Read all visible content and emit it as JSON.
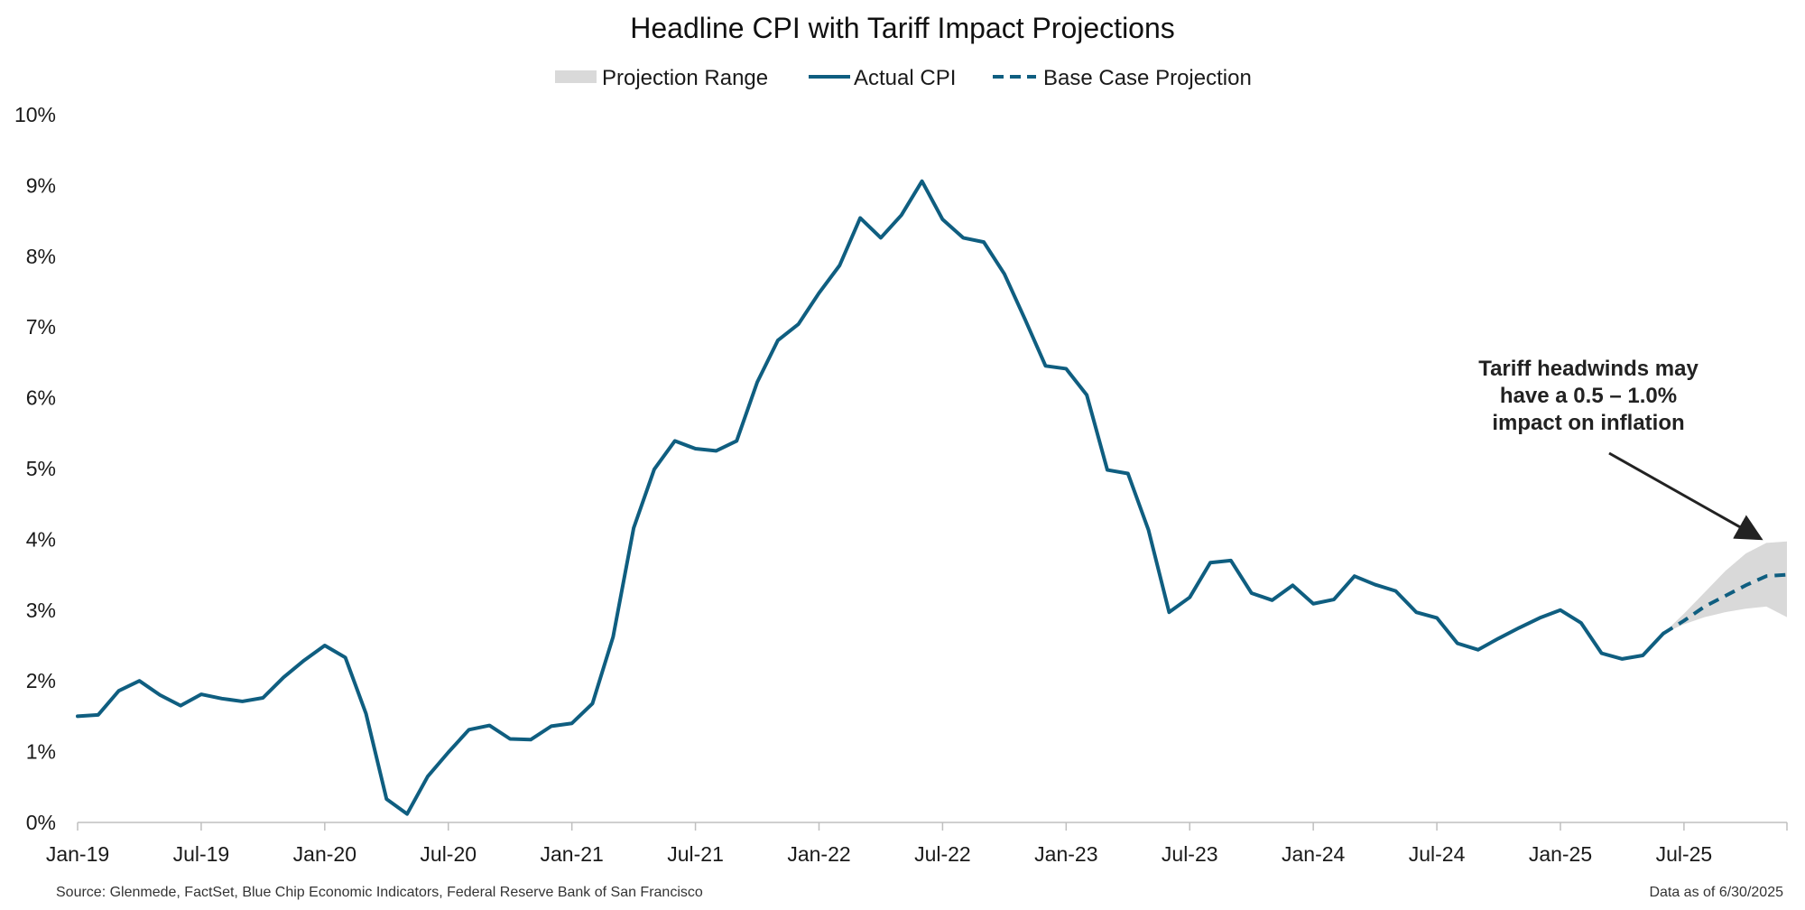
{
  "chart_data": {
    "type": "line",
    "title": "Headline CPI with Tariff Impact Projections",
    "legend": {
      "placement": "top-center",
      "entries": [
        {
          "label": "Projection Range",
          "style": "area",
          "color": "#d9d9d9"
        },
        {
          "label": "Actual CPI",
          "style": "solid",
          "color": "#0f5e80"
        },
        {
          "label": "Base Case Projection",
          "style": "dashed",
          "color": "#0f5e80"
        }
      ]
    },
    "y_axis": {
      "min": 0,
      "max": 10,
      "ticks": [
        0,
        1,
        2,
        3,
        4,
        5,
        6,
        7,
        8,
        9,
        10
      ],
      "tick_labels": [
        "0%",
        "1%",
        "2%",
        "3%",
        "4%",
        "5%",
        "6%",
        "7%",
        "8%",
        "9%",
        "10%"
      ],
      "grid": false
    },
    "x_axis": {
      "start": "Jan-19",
      "end": "Dec-25",
      "tick_labels": [
        "Jan-19",
        "Jul-19",
        "Jan-20",
        "Jul-20",
        "Jan-21",
        "Jul-21",
        "Jan-22",
        "Jul-22",
        "Jan-23",
        "Jul-23",
        "Jan-24",
        "Jul-24",
        "Jan-25",
        "Jul-25"
      ]
    },
    "series": [
      {
        "name": "Actual CPI",
        "style": "solid",
        "color": "#0f5e80",
        "x": [
          "Jan-19",
          "Feb-19",
          "Mar-19",
          "Apr-19",
          "May-19",
          "Jun-19",
          "Jul-19",
          "Aug-19",
          "Sep-19",
          "Oct-19",
          "Nov-19",
          "Dec-19",
          "Jan-20",
          "Feb-20",
          "Mar-20",
          "Apr-20",
          "May-20",
          "Jun-20",
          "Jul-20",
          "Aug-20",
          "Sep-20",
          "Oct-20",
          "Nov-20",
          "Dec-20",
          "Jan-21",
          "Feb-21",
          "Mar-21",
          "Apr-21",
          "May-21",
          "Jun-21",
          "Jul-21",
          "Aug-21",
          "Sep-21",
          "Oct-21",
          "Nov-21",
          "Dec-21",
          "Jan-22",
          "Feb-22",
          "Mar-22",
          "Apr-22",
          "May-22",
          "Jun-22",
          "Jul-22",
          "Aug-22",
          "Sep-22",
          "Oct-22",
          "Nov-22",
          "Dec-22",
          "Jan-23",
          "Feb-23",
          "Mar-23",
          "Apr-23",
          "May-23",
          "Jun-23",
          "Jul-23",
          "Aug-23",
          "Sep-23",
          "Oct-23",
          "Nov-23",
          "Dec-23",
          "Jan-24",
          "Feb-24",
          "Mar-24",
          "Apr-24",
          "May-24",
          "Jun-24",
          "Jul-24",
          "Aug-24",
          "Sep-24",
          "Oct-24",
          "Nov-24",
          "Dec-24",
          "Jan-25",
          "Feb-25",
          "Mar-25",
          "Apr-25",
          "May-25",
          "Jun-25"
        ],
        "values": [
          1.5,
          1.52,
          1.86,
          2.0,
          1.8,
          1.65,
          1.81,
          1.75,
          1.71,
          1.76,
          2.05,
          2.29,
          2.5,
          2.33,
          1.54,
          0.33,
          0.12,
          0.65,
          0.99,
          1.31,
          1.37,
          1.18,
          1.17,
          1.36,
          1.4,
          1.68,
          2.62,
          4.16,
          4.99,
          5.39,
          5.28,
          5.25,
          5.39,
          6.22,
          6.81,
          7.04,
          7.48,
          7.87,
          8.54,
          8.26,
          8.58,
          9.06,
          8.52,
          8.26,
          8.2,
          7.75,
          7.11,
          6.45,
          6.41,
          6.04,
          4.98,
          4.93,
          4.13,
          2.97,
          3.18,
          3.67,
          3.7,
          3.24,
          3.14,
          3.35,
          3.09,
          3.15,
          3.48,
          3.36,
          3.27,
          2.97,
          2.89,
          2.53,
          2.44,
          2.6,
          2.75,
          2.89,
          3.0,
          2.82,
          2.39,
          2.31,
          2.36,
          2.67
        ]
      },
      {
        "name": "Base Case Projection",
        "style": "dashed",
        "color": "#0f5e80",
        "x": [
          "Jun-25",
          "Jul-25",
          "Aug-25",
          "Sep-25",
          "Oct-25",
          "Nov-25",
          "Dec-25"
        ],
        "values": [
          2.67,
          2.85,
          3.05,
          3.2,
          3.35,
          3.48,
          3.5
        ]
      },
      {
        "name": "Projection Range",
        "style": "area",
        "color": "#d9d9d9",
        "x": [
          "Jun-25",
          "Jul-25",
          "Aug-25",
          "Sep-25",
          "Oct-25",
          "Nov-25",
          "Dec-25"
        ],
        "lower": [
          2.67,
          2.8,
          2.9,
          2.97,
          3.02,
          3.05,
          2.9
        ],
        "upper": [
          2.67,
          2.95,
          3.25,
          3.55,
          3.8,
          3.95,
          3.97
        ]
      }
    ],
    "annotation": {
      "lines": [
        "Tariff headwinds may",
        "have a 0.5 – 1.0%",
        "impact on inflation"
      ],
      "arrow_target_x": "Oct-25",
      "arrow_target_y": 3.95
    }
  },
  "footer": {
    "source": "Source: Glenmede, FactSet, Blue Chip Economic Indicators, Federal Reserve Bank of San Francisco",
    "as_of": "Data as of 6/30/2025"
  }
}
